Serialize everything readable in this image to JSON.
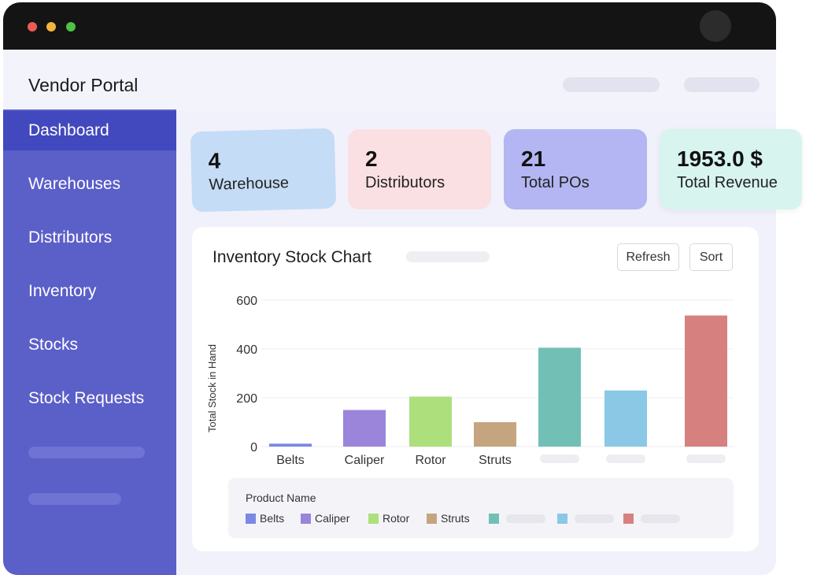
{
  "header": {
    "app_title": "Vendor Portal"
  },
  "sidebar": {
    "items": [
      {
        "label": "Dashboard",
        "active": true
      },
      {
        "label": "Warehouses"
      },
      {
        "label": "Distributors"
      },
      {
        "label": "Inventory"
      },
      {
        "label": "Stocks"
      },
      {
        "label": "Stock Requests"
      }
    ]
  },
  "stats": [
    {
      "value": "4",
      "label": "Warehouse",
      "color": "#c4dcf6"
    },
    {
      "value": "2",
      "label": "Distributors",
      "color": "#fbe0e3"
    },
    {
      "value": "21",
      "label": "Total POs",
      "color": "#b3b6f2"
    },
    {
      "value": "1953.0 $",
      "label": "Total Revenue",
      "color": "#d7f4ee"
    }
  ],
  "chart_panel": {
    "title": "Inventory Stock Chart",
    "refresh_label": "Refresh",
    "sort_label": "Sort",
    "legend_title": "Product Name"
  },
  "chart_data": {
    "type": "bar",
    "ylabel": "Total Stock in Hand",
    "ylim": [
      0,
      600
    ],
    "yticks": [
      0,
      200,
      400,
      600
    ],
    "grid": true,
    "legend_position": "bottom",
    "categories": [
      "Belts",
      "Caliper",
      "Rotor",
      "Struts",
      "",
      "",
      ""
    ],
    "values": [
      12,
      150,
      205,
      100,
      405,
      230,
      537
    ],
    "colors": [
      "#7b88e6",
      "#9b85db",
      "#aedf7d",
      "#c5a57f",
      "#72c0b5",
      "#8ac8e6",
      "#d6817f"
    ]
  }
}
